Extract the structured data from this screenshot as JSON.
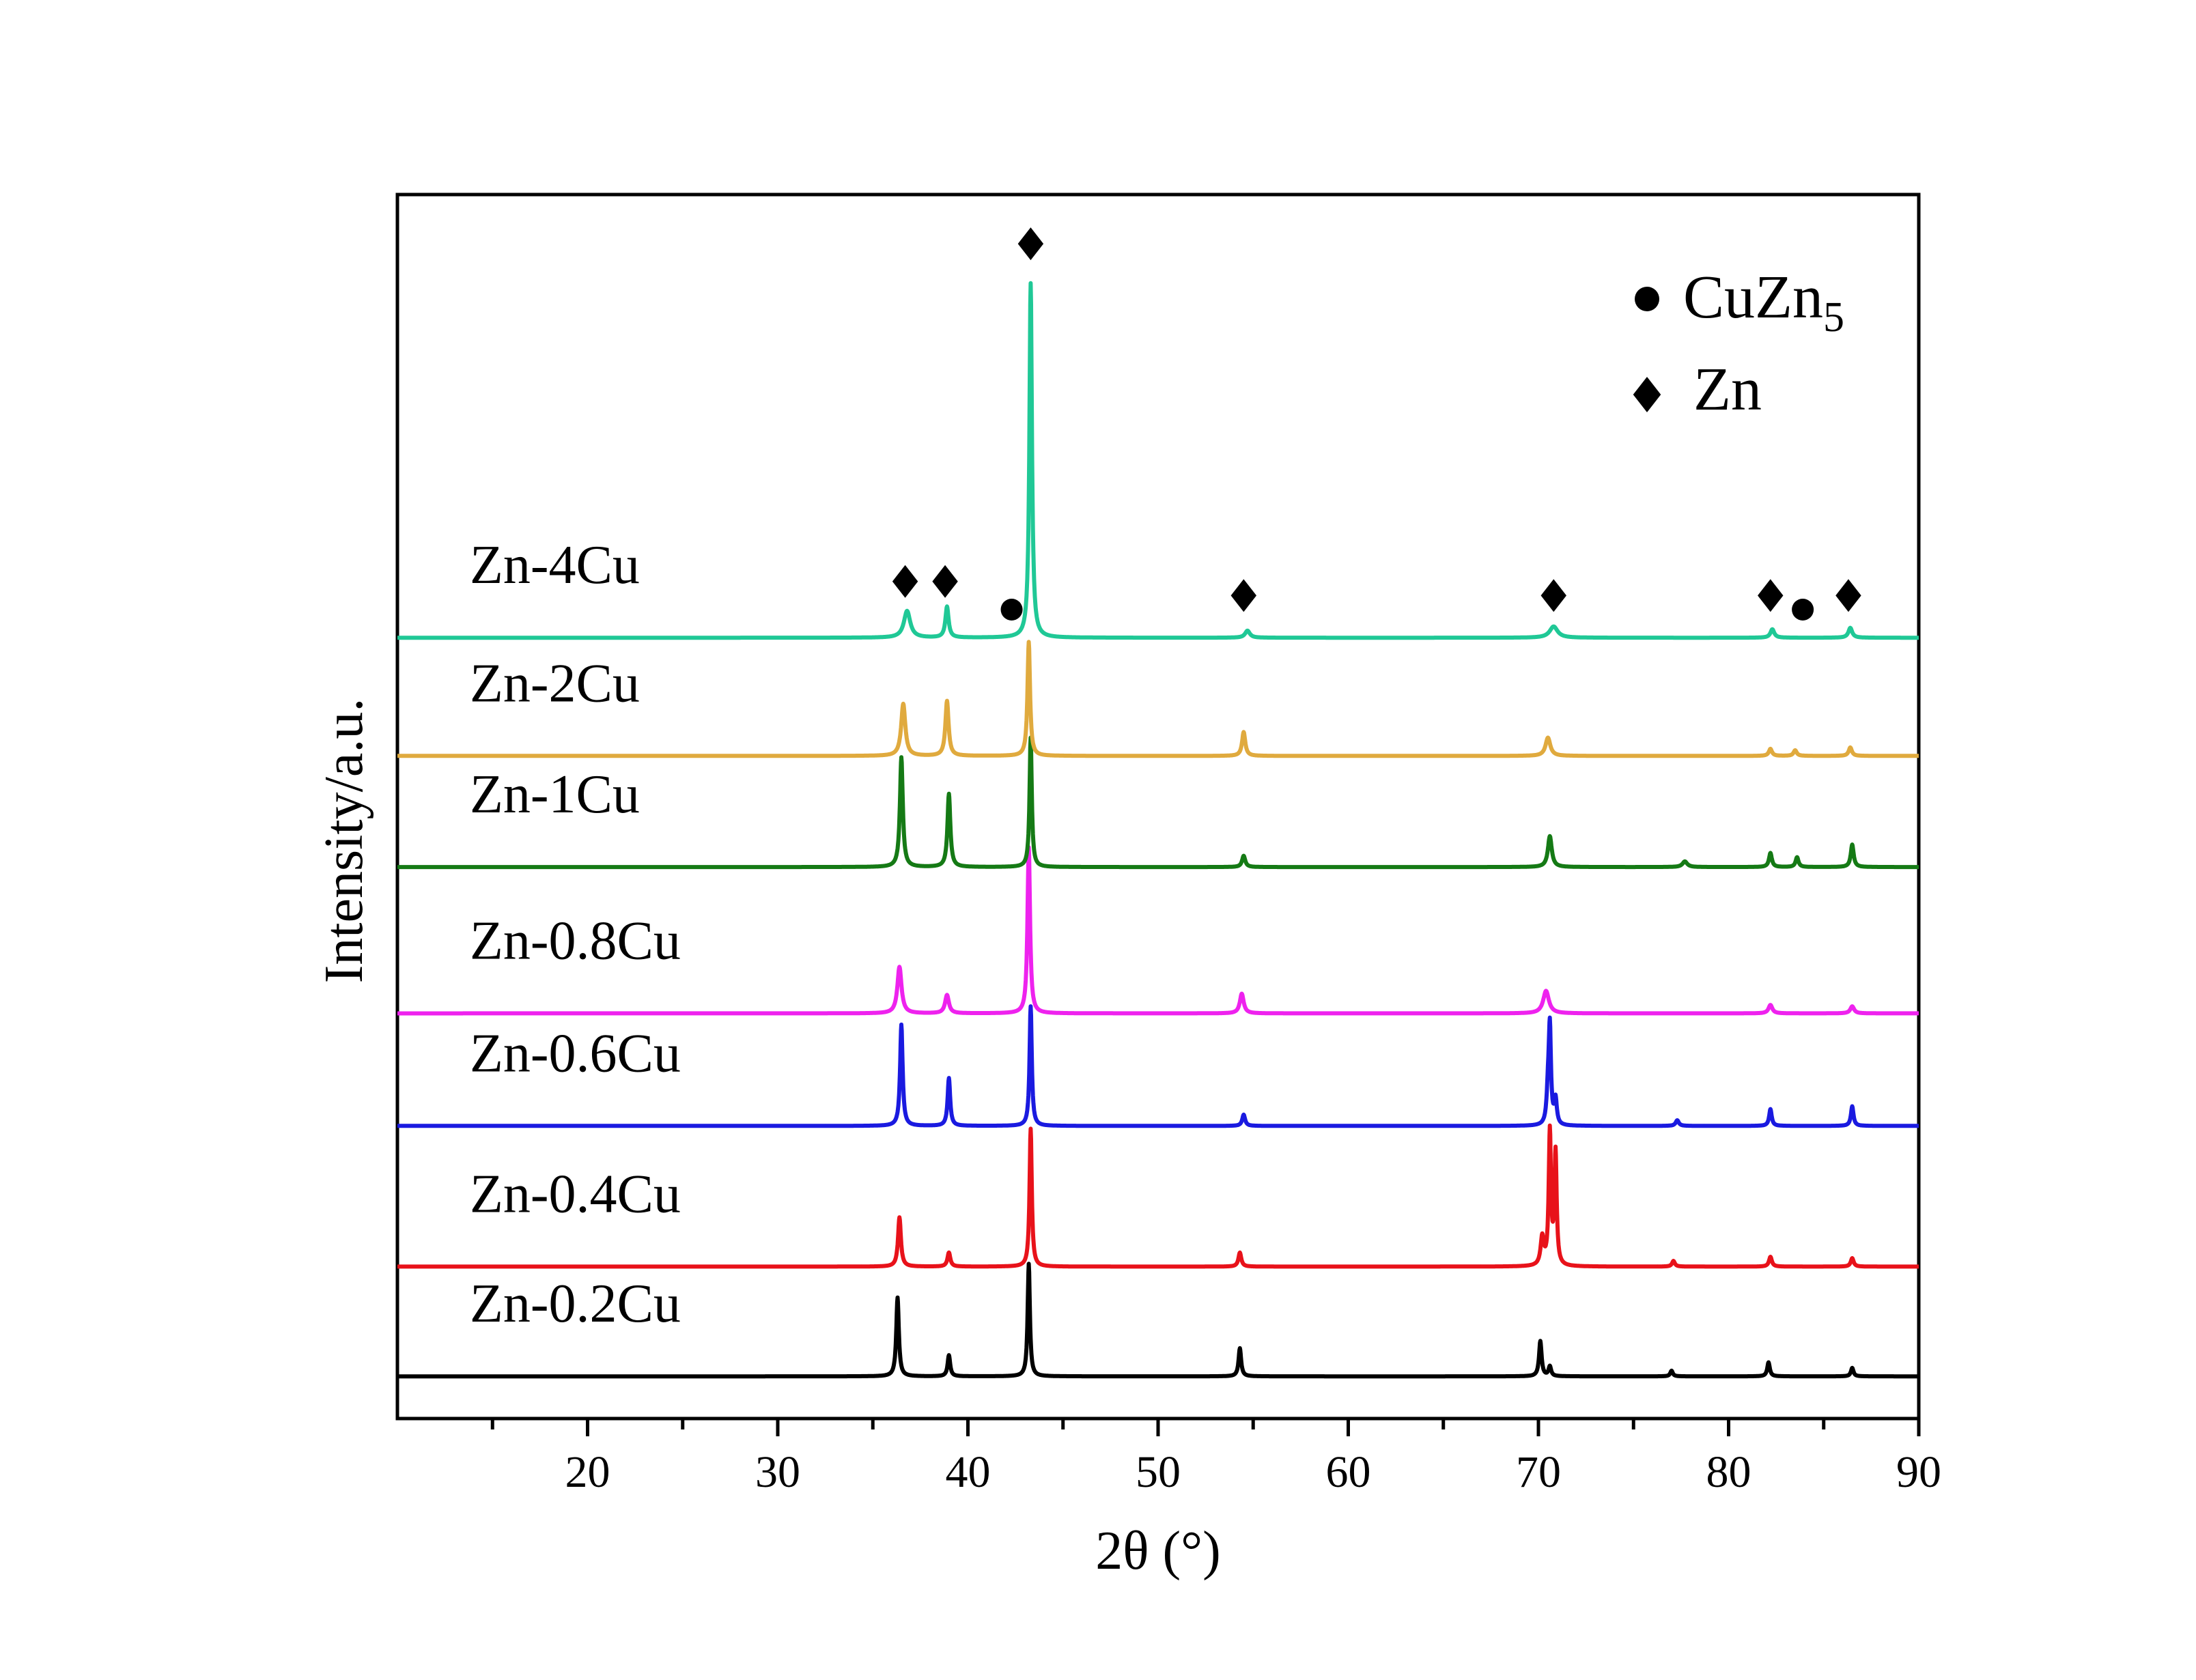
{
  "chart_data": {
    "type": "line",
    "title": "",
    "xlabel": "2θ (°)",
    "ylabel": "Intensity/a.u.",
    "xlim": [
      10,
      90
    ],
    "ylim": [
      0,
      8.7
    ],
    "x_ticks": [
      20,
      30,
      40,
      50,
      60,
      70,
      80,
      90
    ],
    "x_tick_labels": [
      "20",
      "30",
      "40",
      "50",
      "60",
      "70",
      "80",
      "90"
    ],
    "y_ticks_visible": false,
    "grid": false,
    "legend": {
      "placement": "top-right",
      "entries": [
        {
          "marker": "circle",
          "label": "CuZn",
          "subscript": "5"
        },
        {
          "marker": "diamond",
          "label": "Zn"
        }
      ]
    },
    "series": [
      {
        "name": "Zn-0.2Cu",
        "color": "#000000",
        "baseline": 0.3,
        "peaks": [
          [
            36.3,
            0.56,
            0.08
          ],
          [
            39.0,
            0.15,
            0.08
          ],
          [
            43.2,
            0.8,
            0.07
          ],
          [
            54.3,
            0.2,
            0.08
          ],
          [
            70.1,
            0.25,
            0.08
          ],
          [
            70.6,
            0.07,
            0.08
          ],
          [
            77.0,
            0.04,
            0.08
          ],
          [
            82.1,
            0.1,
            0.08
          ],
          [
            86.5,
            0.06,
            0.08
          ]
        ]
      },
      {
        "name": "Zn-0.4Cu",
        "color": "#e8121a",
        "baseline": 1.08,
        "peaks": [
          [
            36.4,
            0.35,
            0.09
          ],
          [
            39.0,
            0.1,
            0.09
          ],
          [
            43.3,
            0.98,
            0.07
          ],
          [
            54.3,
            0.1,
            0.09
          ],
          [
            70.2,
            0.2,
            0.1
          ],
          [
            70.6,
            0.95,
            0.07
          ],
          [
            70.9,
            0.8,
            0.07
          ],
          [
            77.1,
            0.04,
            0.09
          ],
          [
            82.2,
            0.07,
            0.09
          ],
          [
            86.5,
            0.06,
            0.09
          ]
        ]
      },
      {
        "name": "Zn-0.6Cu",
        "color": "#1a1ae0",
        "baseline": 2.08,
        "peaks": [
          [
            36.5,
            0.72,
            0.08
          ],
          [
            39.0,
            0.34,
            0.08
          ],
          [
            43.3,
            0.85,
            0.07
          ],
          [
            54.5,
            0.08,
            0.09
          ],
          [
            70.5,
            0.2,
            0.08
          ],
          [
            70.6,
            0.68,
            0.07
          ],
          [
            70.9,
            0.18,
            0.08
          ],
          [
            77.3,
            0.04,
            0.1
          ],
          [
            82.2,
            0.12,
            0.08
          ],
          [
            86.5,
            0.14,
            0.08
          ]
        ]
      },
      {
        "name": "Zn-0.8Cu",
        "color": "#ee22ee",
        "baseline": 2.88,
        "peaks": [
          [
            36.4,
            0.33,
            0.13
          ],
          [
            38.9,
            0.13,
            0.12
          ],
          [
            43.2,
            1.18,
            0.08
          ],
          [
            54.4,
            0.14,
            0.12
          ],
          [
            70.4,
            0.16,
            0.18
          ],
          [
            82.2,
            0.06,
            0.12
          ],
          [
            86.5,
            0.05,
            0.12
          ]
        ]
      },
      {
        "name": "Zn-1Cu",
        "color": "#157a15",
        "baseline": 3.92,
        "peaks": [
          [
            36.5,
            0.78,
            0.09
          ],
          [
            39.0,
            0.52,
            0.09
          ],
          [
            43.3,
            0.92,
            0.07
          ],
          [
            54.5,
            0.08,
            0.1
          ],
          [
            70.6,
            0.22,
            0.12
          ],
          [
            77.7,
            0.04,
            0.15
          ],
          [
            82.2,
            0.1,
            0.09
          ],
          [
            83.6,
            0.07,
            0.09
          ],
          [
            86.5,
            0.16,
            0.09
          ]
        ]
      },
      {
        "name": "Zn-2Cu",
        "color": "#e0aa3e",
        "baseline": 4.71,
        "peaks": [
          [
            36.6,
            0.37,
            0.13
          ],
          [
            38.9,
            0.39,
            0.1
          ],
          [
            43.2,
            0.81,
            0.08
          ],
          [
            54.5,
            0.17,
            0.1
          ],
          [
            70.5,
            0.13,
            0.15
          ],
          [
            82.2,
            0.05,
            0.1
          ],
          [
            83.5,
            0.04,
            0.1
          ],
          [
            86.4,
            0.06,
            0.1
          ]
        ]
      },
      {
        "name": "Zn-4Cu",
        "color": "#20c896",
        "baseline": 5.55,
        "peaks": [
          [
            36.8,
            0.19,
            0.2
          ],
          [
            38.9,
            0.22,
            0.1
          ],
          [
            43.3,
            2.52,
            0.08
          ],
          [
            54.7,
            0.05,
            0.15
          ],
          [
            70.8,
            0.08,
            0.25
          ],
          [
            82.3,
            0.06,
            0.12
          ],
          [
            86.4,
            0.07,
            0.12
          ]
        ]
      }
    ],
    "annotations": {
      "zn_markers": [
        [
          36.7,
          5.95
        ],
        [
          38.8,
          5.95
        ],
        [
          43.3,
          8.35
        ],
        [
          54.5,
          5.85
        ],
        [
          70.8,
          5.85
        ],
        [
          82.2,
          5.85
        ],
        [
          86.3,
          5.85
        ]
      ],
      "cuzn5_markers": [
        [
          42.3,
          5.75
        ],
        [
          83.9,
          5.75
        ]
      ]
    }
  }
}
